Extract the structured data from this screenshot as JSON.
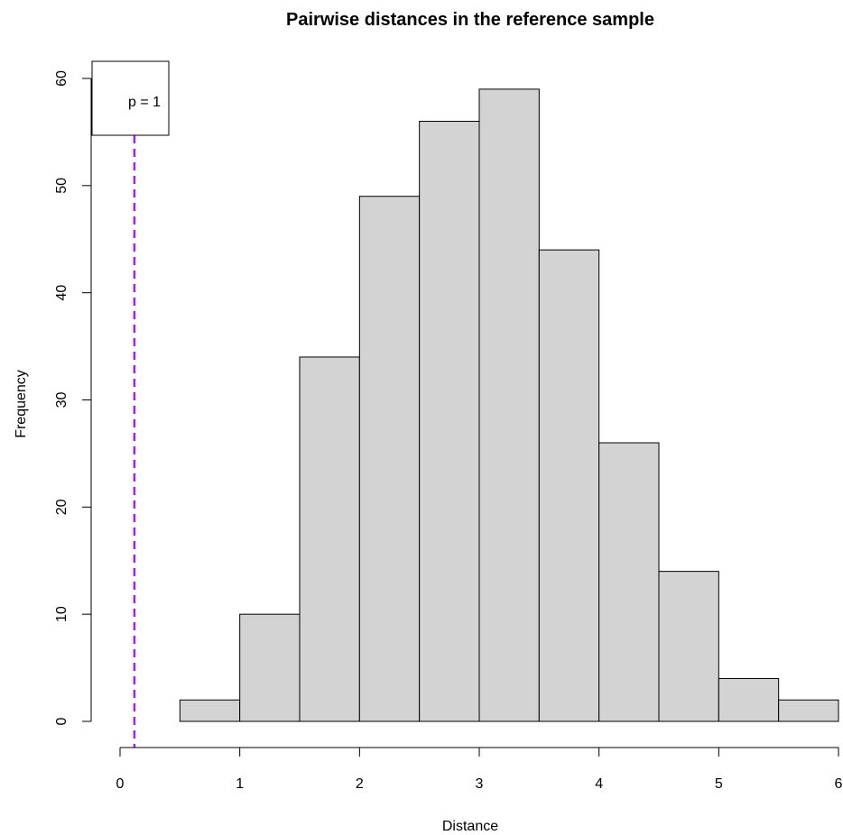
{
  "chart_data": {
    "type": "bar",
    "subtype": "histogram",
    "title": "Pairwise distances in the reference sample",
    "xlabel": "Distance",
    "ylabel": "Frequency",
    "bins": [
      {
        "from": 0.5,
        "to": 1.0,
        "count": 2
      },
      {
        "from": 1.0,
        "to": 1.5,
        "count": 10
      },
      {
        "from": 1.5,
        "to": 2.0,
        "count": 34
      },
      {
        "from": 2.0,
        "to": 2.5,
        "count": 49
      },
      {
        "from": 2.5,
        "to": 3.0,
        "count": 56
      },
      {
        "from": 3.0,
        "to": 3.5,
        "count": 59
      },
      {
        "from": 3.5,
        "to": 4.0,
        "count": 44
      },
      {
        "from": 4.0,
        "to": 4.5,
        "count": 26
      },
      {
        "from": 4.5,
        "to": 5.0,
        "count": 14
      },
      {
        "from": 5.0,
        "to": 5.5,
        "count": 4
      },
      {
        "from": 5.5,
        "to": 6.0,
        "count": 2
      }
    ],
    "xlim": [
      0,
      6
    ],
    "ylim": [
      0,
      60
    ],
    "x_ticks": [
      "0",
      "1",
      "2",
      "3",
      "4",
      "5",
      "6"
    ],
    "y_ticks": [
      "0",
      "10",
      "20",
      "30",
      "40",
      "50",
      "60"
    ],
    "bar_fill": "#d3d3d3",
    "bar_stroke": "#000000",
    "grid": false,
    "reference_line": {
      "x": 0.12,
      "color": "#a020f0",
      "style": "dashed"
    },
    "legend": {
      "position": "top-left",
      "text": "p = 1"
    }
  }
}
